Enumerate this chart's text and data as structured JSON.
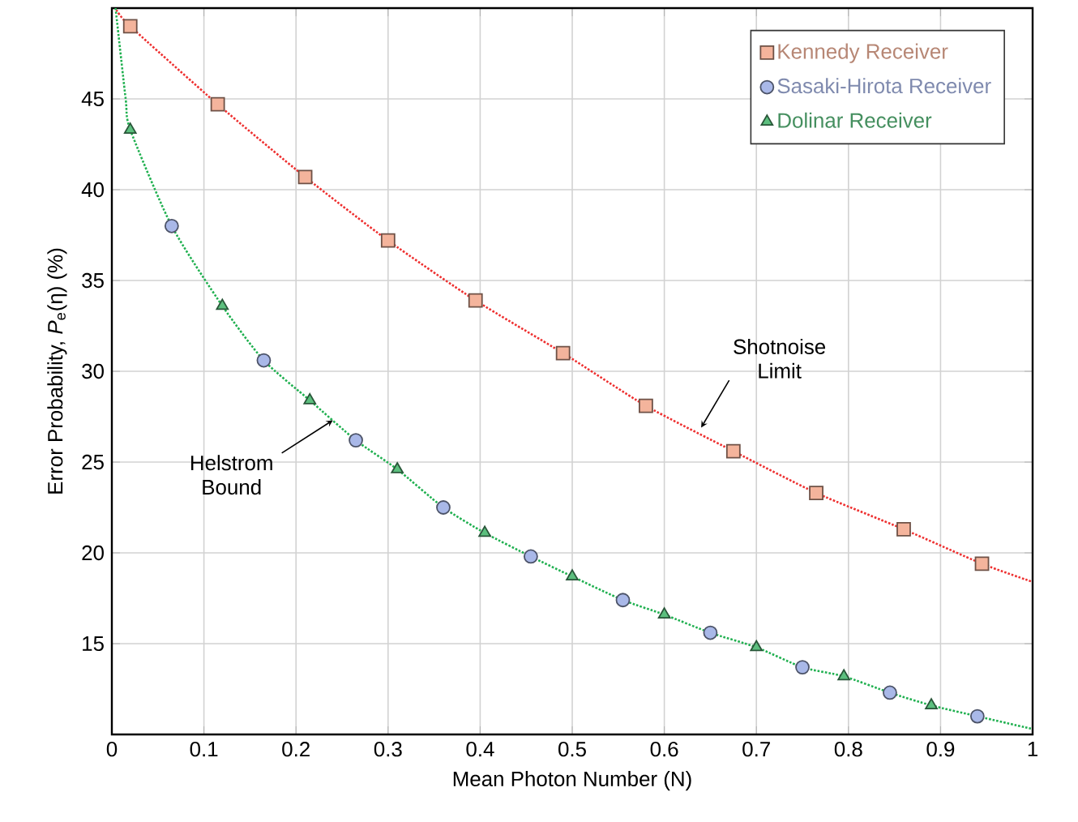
{
  "chart_data": {
    "type": "scatter",
    "xlabel": "Mean Photon Number (N)",
    "ylabel": "Error Probability, *P*$_{e}$(η) (%)",
    "xlim": [
      0,
      1
    ],
    "ylim": [
      10,
      50
    ],
    "xticks": [
      0,
      0.1,
      0.2,
      0.3,
      0.4,
      0.5,
      0.6,
      0.7,
      0.8,
      0.9,
      1
    ],
    "yticks": [
      15,
      20,
      25,
      30,
      35,
      40,
      45
    ],
    "grid": true,
    "legend": "top right",
    "series": [
      {
        "name": "Kennedy Receiver",
        "marker": "square",
        "color": "#f4b49c",
        "x": [
          0.02,
          0.115,
          0.21,
          0.3,
          0.395,
          0.49,
          0.58,
          0.675,
          0.765,
          0.86,
          0.945
        ],
        "values": [
          49.0,
          44.7,
          40.7,
          37.2,
          33.9,
          31.0,
          28.1,
          25.6,
          23.3,
          21.3,
          19.4
        ]
      },
      {
        "name": "Sasaki-Hirota Receiver",
        "marker": "circle",
        "color": "#a9b8e8",
        "x": [
          0.065,
          0.165,
          0.265,
          0.36,
          0.455,
          0.555,
          0.65,
          0.75,
          0.845,
          0.94
        ],
        "values": [
          38.0,
          30.6,
          26.2,
          22.5,
          19.8,
          17.4,
          15.6,
          13.7,
          12.3,
          11.0
        ]
      },
      {
        "name": "Dolinar Receiver",
        "marker": "triangle",
        "color": "#5cbf7e",
        "x": [
          0.02,
          0.12,
          0.215,
          0.31,
          0.405,
          0.5,
          0.6,
          0.7,
          0.795,
          0.89
        ],
        "values": [
          43.3,
          33.6,
          28.4,
          24.6,
          21.1,
          18.7,
          16.6,
          14.8,
          13.2,
          11.6
        ]
      },
      {
        "type": "line",
        "line_style": "dotted",
        "marker": "none",
        "color": "#ee3030",
        "x": [
          0.005,
          0.02,
          0.115,
          0.21,
          0.3,
          0.395,
          0.49,
          0.58,
          0.675,
          0.765,
          0.86,
          0.945,
          1
        ],
        "values": [
          49.9,
          49.0,
          44.7,
          40.7,
          37.2,
          33.9,
          31.0,
          28.1,
          25.6,
          23.3,
          21.3,
          19.4,
          18.4
        ]
      },
      {
        "type": "line",
        "line_style": "dotted",
        "marker": "none",
        "color": "#20b050",
        "x": [
          0.004,
          0.015,
          0.02,
          0.065,
          0.12,
          0.165,
          0.215,
          0.265,
          0.31,
          0.36,
          0.405,
          0.455,
          0.5,
          0.555,
          0.6,
          0.65,
          0.7,
          0.75,
          0.795,
          0.845,
          0.89,
          0.94,
          1
        ],
        "values": [
          50.0,
          45.0,
          43.3,
          38.0,
          33.6,
          30.6,
          28.4,
          26.2,
          24.6,
          22.5,
          21.1,
          19.8,
          18.7,
          17.4,
          16.6,
          15.6,
          14.8,
          13.7,
          13.2,
          12.3,
          11.6,
          11.0,
          10.3
        ]
      }
    ],
    "annotations": [
      {
        "text": "Helstrom Bound",
        "x": 0.24,
        "y": 27.3
      },
      {
        "text": "Shotnoise Limit",
        "x": 0.64,
        "y": 26.9
      }
    ]
  }
}
